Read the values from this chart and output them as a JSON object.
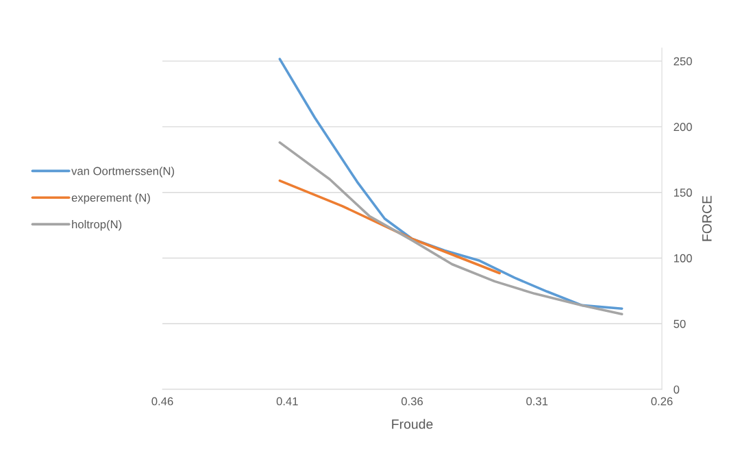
{
  "chart_data": {
    "type": "line",
    "xlabel": "Froude",
    "ylabel": "FORCE",
    "xlim": [
      0.46,
      0.26
    ],
    "xticks": [
      0.46,
      0.41,
      0.36,
      0.31,
      0.26
    ],
    "ylim": [
      0,
      260
    ],
    "yticks": [
      0,
      50,
      100,
      150,
      200,
      250
    ],
    "grid": "y",
    "legend": "left",
    "marker": "none",
    "line_style": "solid",
    "series": [
      {
        "name": "van Oortmerssen(N)",
        "color": "#5b9bd5",
        "x": [
          0.413,
          0.399,
          0.382,
          0.371,
          0.36,
          0.347,
          0.333,
          0.319,
          0.306,
          0.292,
          0.276
        ],
        "values": [
          251.6,
          207,
          158,
          130,
          114.6,
          105.7,
          98,
          85,
          74.5,
          64,
          61.5
        ]
      },
      {
        "name": "experement (N)",
        "color": "#ed7d31",
        "x": [
          0.413,
          0.388,
          0.36,
          0.325
        ],
        "values": [
          158.9,
          139.6,
          114.6,
          88.5
        ]
      },
      {
        "name": "holtrop(N)",
        "color": "#a5a5a5",
        "x": [
          0.413,
          0.393,
          0.377,
          0.36,
          0.344,
          0.327,
          0.311,
          0.292,
          0.276
        ],
        "values": [
          188,
          160,
          131.8,
          113.5,
          95.3,
          82.3,
          72.9,
          64,
          57.3
        ]
      }
    ]
  }
}
